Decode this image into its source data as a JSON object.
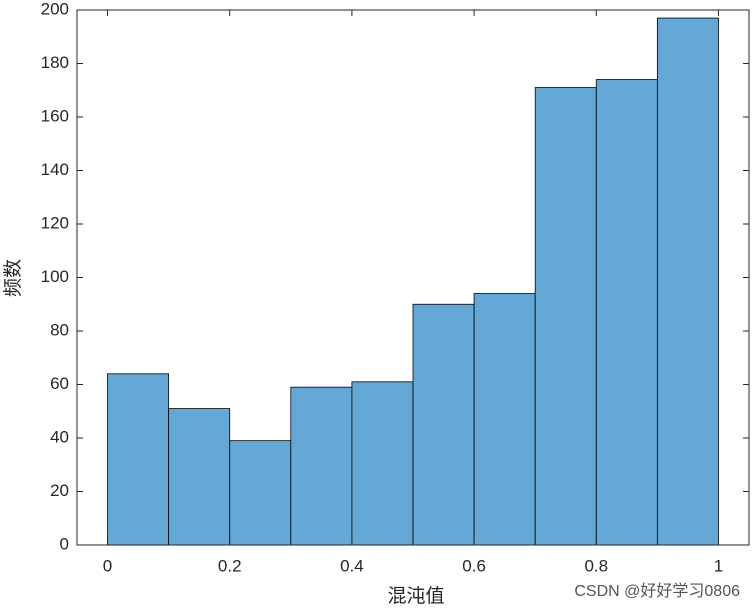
{
  "chart_data": {
    "type": "histogram",
    "xlabel": "混沌值",
    "ylabel": "频数",
    "bins": [
      0,
      0.1,
      0.2,
      0.3,
      0.4,
      0.5,
      0.6,
      0.7,
      0.8,
      0.9,
      1
    ],
    "counts": [
      64,
      51,
      39,
      59,
      61,
      90,
      94,
      171,
      174,
      197
    ],
    "color": "#64a8d8",
    "xlim": [
      -0.05,
      1.05
    ],
    "xticks": [
      0,
      0.2,
      0.4,
      0.6,
      0.8,
      1
    ],
    "ylim": [
      0,
      200
    ],
    "yticks": [
      0,
      20,
      40,
      60,
      80,
      100,
      120,
      140,
      160,
      180,
      200
    ],
    "watermark": "CSDN @好好学习0806"
  }
}
